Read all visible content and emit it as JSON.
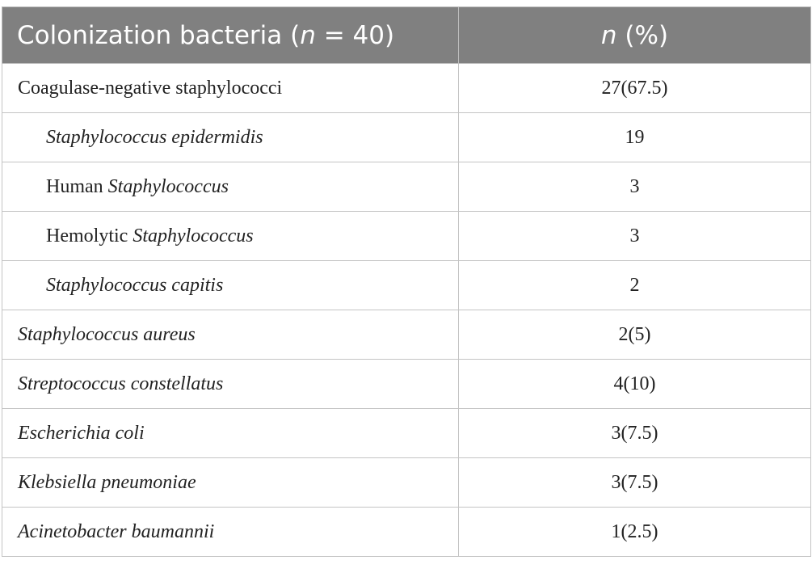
{
  "table": {
    "header": [
      [
        {
          "text": "Colonization bacteria ("
        },
        {
          "text": "n",
          "italic": true
        },
        {
          "text": " = 40)"
        }
      ],
      [
        {
          "text": "n",
          "italic": true
        },
        {
          "text": " (%)"
        }
      ]
    ],
    "rows": [
      {
        "label": [
          {
            "text": "Coagulase-negative staphylococci"
          }
        ],
        "value": "27(67.5)"
      },
      {
        "label": [
          {
            "text": "Staphylococcus epidermidis",
            "italic": true
          }
        ],
        "value": "19",
        "indent": true
      },
      {
        "label": [
          {
            "text": "Human "
          },
          {
            "text": "Staphylococcus",
            "italic": true
          }
        ],
        "value": "3",
        "indent": true
      },
      {
        "label": [
          {
            "text": "Hemolytic "
          },
          {
            "text": "Staphylococcus",
            "italic": true
          }
        ],
        "value": "3",
        "indent": true
      },
      {
        "label": [
          {
            "text": "Staphylococcus capitis",
            "italic": true
          }
        ],
        "value": "2",
        "indent": true
      },
      {
        "label": [
          {
            "text": "Staphylococcus aureus",
            "italic": true
          }
        ],
        "value": "2(5)"
      },
      {
        "label": [
          {
            "text": "Streptococcus constellatus",
            "italic": true
          }
        ],
        "value": "4(10)"
      },
      {
        "label": [
          {
            "text": "Escherichia coli",
            "italic": true
          }
        ],
        "value": "3(7.5)"
      },
      {
        "label": [
          {
            "text": "Klebsiella pneumoniae",
            "italic": true
          }
        ],
        "value": "3(7.5)"
      },
      {
        "label": [
          {
            "text": "Acinetobacter baumannii",
            "italic": true
          }
        ],
        "value": "1(2.5)"
      }
    ]
  }
}
